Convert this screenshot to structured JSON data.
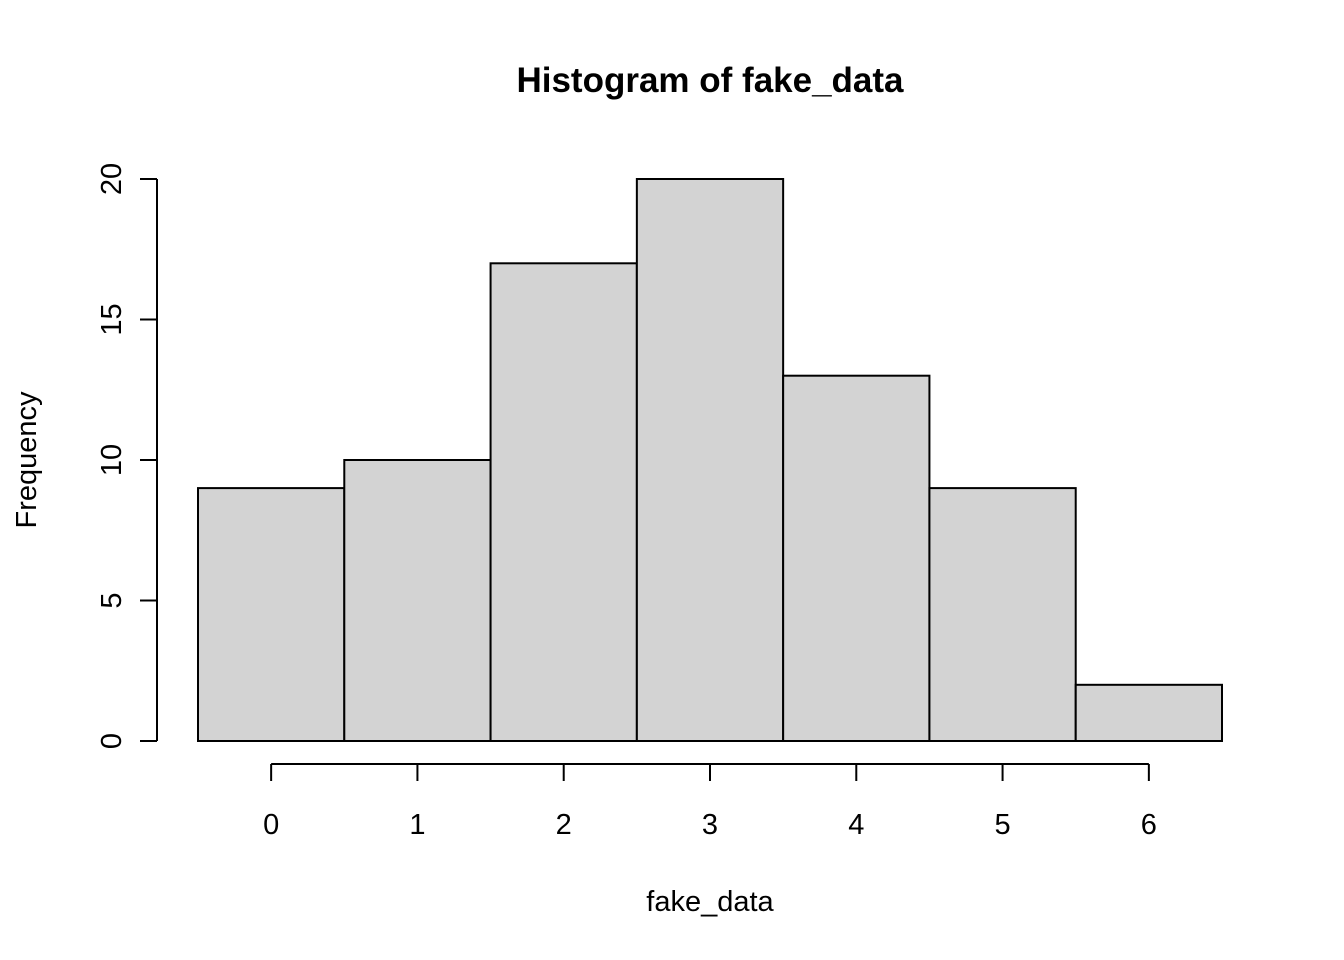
{
  "chart_data": {
    "type": "bar",
    "title": "Histogram of fake_data",
    "xlabel": "fake_data",
    "ylabel": "Frequency",
    "bins": [
      {
        "x_start": -0.5,
        "x_end": 0.5,
        "value": 9
      },
      {
        "x_start": 0.5,
        "x_end": 1.5,
        "value": 10
      },
      {
        "x_start": 1.5,
        "x_end": 2.5,
        "value": 17
      },
      {
        "x_start": 2.5,
        "x_end": 3.5,
        "value": 20
      },
      {
        "x_start": 3.5,
        "x_end": 4.5,
        "value": 13
      },
      {
        "x_start": 4.5,
        "x_end": 5.5,
        "value": 9
      },
      {
        "x_start": 5.5,
        "x_end": 6.5,
        "value": 2
      }
    ],
    "x_ticks": [
      "0",
      "1",
      "2",
      "3",
      "4",
      "5",
      "6"
    ],
    "y_ticks": [
      "0",
      "5",
      "10",
      "15",
      "20"
    ],
    "xlim": [
      -0.5,
      6.5
    ],
    "ylim": [
      0,
      20
    ],
    "grid": false,
    "bar_fill": "#d3d3d3",
    "bar_stroke": "#000000"
  }
}
